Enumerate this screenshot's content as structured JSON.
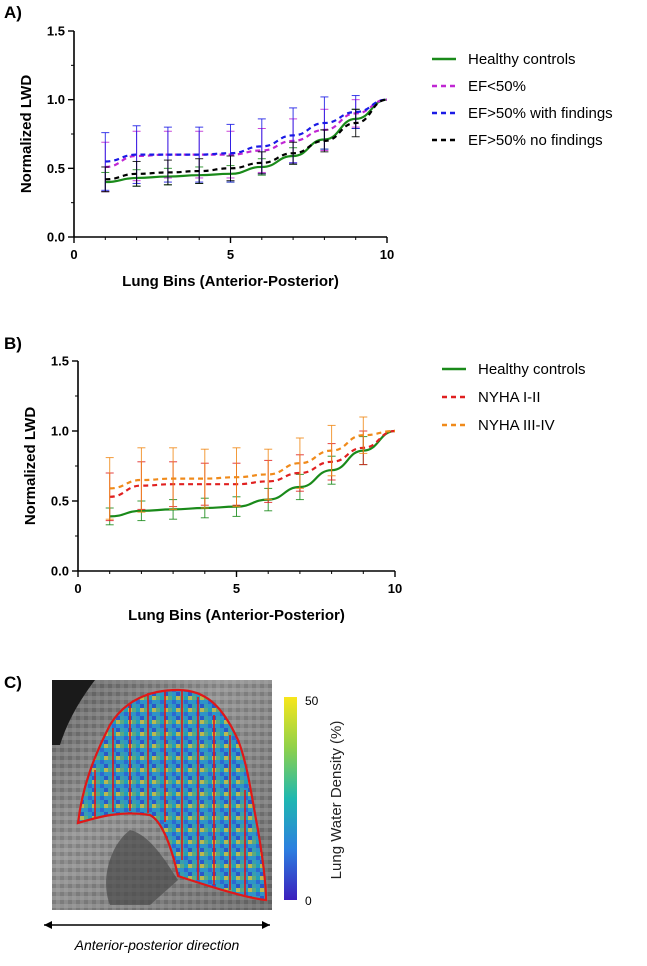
{
  "chart_data": [
    {
      "panel": "A)",
      "type": "line",
      "xlabel": "Lung Bins (Anterior-Posterior)",
      "ylabel": "Normalized LWD",
      "xlim": [
        0,
        10
      ],
      "ylim": [
        0,
        1.5
      ],
      "xticks": [
        "0",
        "5",
        "10"
      ],
      "yticks": [
        "0.0",
        "0.5",
        "1.0",
        "1.5"
      ],
      "legend_position": "right",
      "x": [
        1,
        2,
        3,
        4,
        5,
        6,
        7,
        8,
        9,
        10
      ],
      "series": [
        {
          "name": "Healthy controls",
          "color": "#1a8a1a",
          "dash": "solid",
          "values": [
            0.4,
            0.43,
            0.44,
            0.45,
            0.46,
            0.51,
            0.59,
            0.71,
            0.86,
            1.0
          ],
          "error": [
            0.07,
            0.06,
            0.06,
            0.06,
            0.06,
            0.06,
            0.06,
            0.07,
            0.07,
            0
          ]
        },
        {
          "name": "EF<50%",
          "color": "#c026d3",
          "dash": "dashed",
          "values": [
            0.51,
            0.59,
            0.6,
            0.6,
            0.6,
            0.63,
            0.7,
            0.78,
            0.9,
            1.0
          ],
          "error": [
            0.18,
            0.18,
            0.17,
            0.17,
            0.17,
            0.16,
            0.16,
            0.15,
            0.1,
            0
          ]
        },
        {
          "name": "EF>50% with findings",
          "color": "#1a1ae6",
          "dash": "dashed",
          "values": [
            0.55,
            0.6,
            0.6,
            0.6,
            0.61,
            0.66,
            0.74,
            0.83,
            0.91,
            1.0
          ],
          "error": [
            0.21,
            0.21,
            0.2,
            0.2,
            0.21,
            0.2,
            0.2,
            0.19,
            0.12,
            0
          ]
        },
        {
          "name": "EF>50% no findings",
          "color": "#000000",
          "dash": "dashed",
          "values": [
            0.42,
            0.46,
            0.47,
            0.48,
            0.5,
            0.54,
            0.61,
            0.7,
            0.83,
            1.0
          ],
          "error": [
            0.09,
            0.09,
            0.09,
            0.09,
            0.09,
            0.08,
            0.08,
            0.08,
            0.1,
            0
          ]
        }
      ]
    },
    {
      "panel": "B)",
      "type": "line",
      "xlabel": "Lung Bins (Anterior-Posterior)",
      "ylabel": "Normalized LWD",
      "xlim": [
        0,
        10
      ],
      "ylim": [
        0,
        1.5
      ],
      "xticks": [
        "0",
        "5",
        "10"
      ],
      "yticks": [
        "0.0",
        "0.5",
        "1.0",
        "1.5"
      ],
      "legend_position": "right",
      "x": [
        1,
        2,
        3,
        4,
        5,
        6,
        7,
        8,
        9,
        10
      ],
      "series": [
        {
          "name": "Healthy controls",
          "color": "#1a8a1a",
          "dash": "solid",
          "values": [
            0.39,
            0.43,
            0.44,
            0.45,
            0.46,
            0.51,
            0.6,
            0.72,
            0.86,
            1.0
          ],
          "error": [
            0.06,
            0.07,
            0.07,
            0.07,
            0.07,
            0.08,
            0.09,
            0.1,
            0.1,
            0
          ]
        },
        {
          "name": "NYHA I-II",
          "color": "#e02020",
          "dash": "dashed",
          "values": [
            0.53,
            0.61,
            0.62,
            0.62,
            0.62,
            0.64,
            0.7,
            0.78,
            0.88,
            1.0
          ],
          "error": [
            0.17,
            0.17,
            0.16,
            0.15,
            0.15,
            0.15,
            0.13,
            0.13,
            0.12,
            0
          ]
        },
        {
          "name": "NYHA III-IV",
          "color": "#f08a1a",
          "dash": "dashed",
          "values": [
            0.59,
            0.65,
            0.66,
            0.66,
            0.67,
            0.69,
            0.77,
            0.86,
            0.97,
            1.0
          ],
          "error": [
            0.22,
            0.23,
            0.22,
            0.21,
            0.21,
            0.18,
            0.18,
            0.18,
            0.13,
            0
          ]
        }
      ]
    }
  ],
  "panel_c": {
    "letter": "C)",
    "colorbar_max": "50",
    "colorbar_min": "0",
    "colorbar_label": "Lung Water Density (%)",
    "direction_label": "Anterior-posterior direction"
  }
}
